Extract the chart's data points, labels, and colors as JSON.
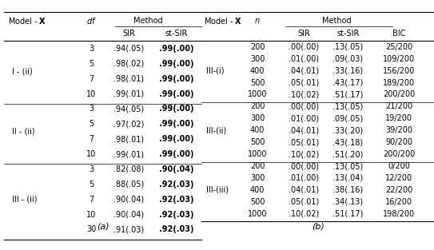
{
  "table_a": {
    "groups": [
      {
        "model": "I - (ii)",
        "rows": [
          [
            "3",
            ".94(.05)",
            ".99(.00)"
          ],
          [
            "5",
            ".98(.02)",
            ".99(.00)"
          ],
          [
            "7",
            ".98(.01)",
            ".99(.00)"
          ],
          [
            "10",
            ".99(.01)",
            ".99(.00)"
          ]
        ]
      },
      {
        "model": "II - (ii)",
        "rows": [
          [
            "3",
            ".94(.05)",
            ".99(.00)"
          ],
          [
            "5",
            ".97(.02)",
            ".99(.00)"
          ],
          [
            "7",
            ".98(.01)",
            ".99(.00)"
          ],
          [
            "10",
            ".99(.01)",
            ".99(.00)"
          ]
        ]
      },
      {
        "model": "III - (ii)",
        "rows": [
          [
            "3",
            ".82(.08)",
            ".90(.04)"
          ],
          [
            "5",
            ".88(.05)",
            ".92(.03)"
          ],
          [
            "7",
            ".90(.04)",
            ".92(.03)"
          ],
          [
            "10",
            ".90(.04)",
            ".92(.03)"
          ],
          [
            "30",
            ".91(.03)",
            ".92(.03)"
          ]
        ]
      }
    ]
  },
  "table_b": {
    "groups": [
      {
        "model": "III-(i)",
        "rows": [
          [
            "200",
            ".00(.00)",
            ".13(.05)",
            "25/200"
          ],
          [
            "300",
            ".01(.00)",
            ".09(.03)",
            "109/200"
          ],
          [
            "400",
            ".04(.01)",
            ".33(.16)",
            "156/200"
          ],
          [
            "500",
            ".05(.01)",
            ".43(.17)",
            "189/200"
          ],
          [
            "1000",
            ".10(.02)",
            ".51(.17)",
            "200/200"
          ]
        ]
      },
      {
        "model": "III-(ii)",
        "rows": [
          [
            "200",
            ".00(.00)",
            ".13(.05)",
            "21/200"
          ],
          [
            "300",
            ".01(.00)",
            ".09(.05)",
            "19/200"
          ],
          [
            "400",
            ".04(.01)",
            ".33(.20)",
            "39/200"
          ],
          [
            "500",
            ".05(.01)",
            ".43(.18)",
            "90/200"
          ],
          [
            "1000",
            ".10(.02)",
            ".51(.20)",
            "200/200"
          ]
        ]
      },
      {
        "model": "III-(iii)",
        "rows": [
          [
            "200",
            ".00(.00)",
            ".13(.05)",
            "0/200"
          ],
          [
            "300",
            ".01(.00)",
            ".13(.04)",
            "12/200"
          ],
          [
            "400",
            ".04(.01)",
            ".38(.16)",
            "22/200"
          ],
          [
            "500",
            ".05(.01)",
            ".34(.13)",
            "16/200"
          ],
          [
            "1000",
            ".10(.02)",
            ".51(.17)",
            "198/200"
          ]
        ]
      }
    ]
  },
  "caption_a": "(a)",
  "caption_b": "(b)",
  "fontsize": 7.0,
  "bg_color": "#ffffff"
}
